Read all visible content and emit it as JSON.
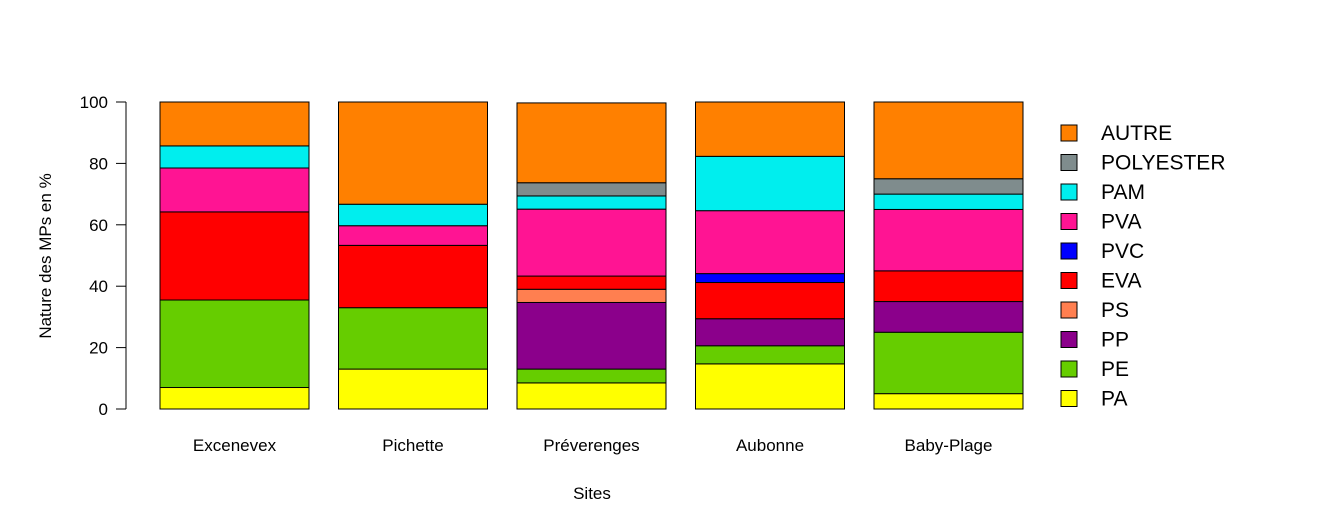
{
  "chart_data": {
    "type": "bar",
    "stacked": true,
    "title": "",
    "xlabel": "Sites",
    "ylabel": "Nature des MPs en %",
    "ylim": [
      0,
      100
    ],
    "yticks": [
      0,
      20,
      40,
      60,
      80,
      100
    ],
    "grid": false,
    "legend_position": "right",
    "categories": [
      "Excenevex",
      "Pichette",
      "Préverenges",
      "Aubonne",
      "Baby-Plage"
    ],
    "series": [
      {
        "name": "PA",
        "color": "#FFFF00",
        "values": [
          7,
          13,
          8.5,
          14.7,
          5
        ]
      },
      {
        "name": "PE",
        "color": "#66CD00",
        "values": [
          28.5,
          20,
          4.5,
          5.9,
          20
        ]
      },
      {
        "name": "PP",
        "color": "#8B008B",
        "values": [
          0,
          0,
          21.7,
          8.8,
          10
        ]
      },
      {
        "name": "PS",
        "color": "#FF7F50",
        "values": [
          0,
          0,
          4.3,
          0,
          0
        ]
      },
      {
        "name": "EVA",
        "color": "#FF0000",
        "values": [
          28.7,
          20.3,
          4.3,
          11.8,
          10
        ]
      },
      {
        "name": "PVC",
        "color": "#0000FF",
        "values": [
          0,
          0,
          0,
          2.9,
          0
        ]
      },
      {
        "name": "PVA",
        "color": "#FF1493",
        "values": [
          14.3,
          6.4,
          21.8,
          20.5,
          20
        ]
      },
      {
        "name": "PAM",
        "color": "#00EEEE",
        "values": [
          7.2,
          7,
          4.3,
          17.7,
          5
        ]
      },
      {
        "name": "POLYESTER",
        "color": "#7F8C8D",
        "values": [
          0,
          0,
          4.3,
          0,
          5
        ]
      },
      {
        "name": "AUTRE",
        "color": "#FF8000",
        "values": [
          14.3,
          33.3,
          26,
          17.7,
          25
        ]
      }
    ]
  }
}
